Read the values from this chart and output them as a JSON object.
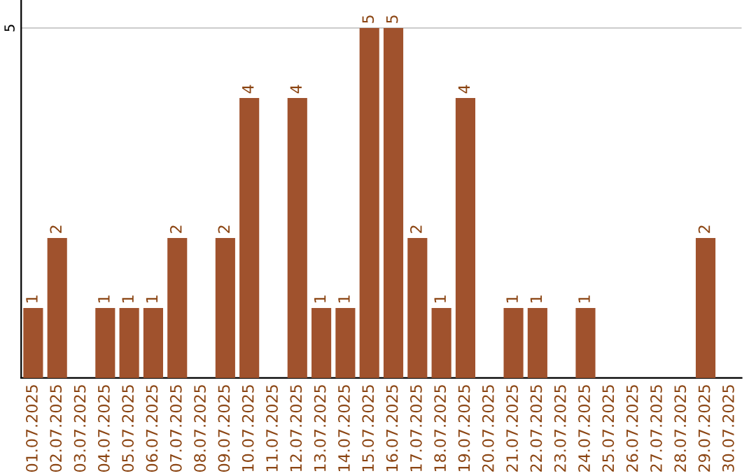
{
  "chart_data": {
    "type": "bar",
    "categories": [
      "01.07.2025",
      "02.07.2025",
      "03.07.2025",
      "04.07.2025",
      "05.07.2025",
      "06.07.2025",
      "07.07.2025",
      "08.07.2025",
      "09.07.2025",
      "10.07.2025",
      "11.07.2025",
      "12.07.2025",
      "13.07.2025",
      "14.07.2025",
      "15.07.2025",
      "16.07.2025",
      "17.07.2025",
      "18.07.2025",
      "19.07.2025",
      "20.07.2025",
      "21.07.2025",
      "22.07.2025",
      "23.07.2025",
      "24.07.2025",
      "25.07.2025",
      "26.07.2025",
      "27.07.2025",
      "28.07.2025",
      "29.07.2025",
      "30.07.2025"
    ],
    "values": [
      1,
      2,
      0,
      1,
      1,
      1,
      2,
      0,
      2,
      4,
      0,
      4,
      1,
      1,
      5,
      5,
      2,
      1,
      4,
      0,
      1,
      1,
      0,
      1,
      0,
      0,
      0,
      0,
      2,
      0
    ],
    "value_labels": [
      "1",
      "2",
      null,
      "1",
      "1",
      "1",
      "2",
      null,
      "2",
      "4",
      null,
      "4",
      "1",
      "1",
      "5",
      "5",
      "2",
      "1",
      "4",
      null,
      "1",
      "1",
      null,
      "1",
      null,
      null,
      null,
      null,
      "2",
      null
    ],
    "color": "#a0522d",
    "ylim": [
      0,
      5.4
    ],
    "yticks": [
      5
    ],
    "grid": "y",
    "legend": false
  }
}
